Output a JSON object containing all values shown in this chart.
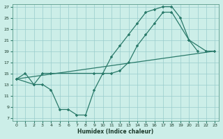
{
  "bg_color": "#cceee8",
  "grid_color": "#99cccc",
  "line_color": "#2a7a6a",
  "xlabel": "Humidex (Indice chaleur)",
  "xlim": [
    -0.5,
    23.5
  ],
  "ylim": [
    6.5,
    27.5
  ],
  "xticks": [
    0,
    1,
    2,
    3,
    4,
    5,
    6,
    7,
    8,
    9,
    10,
    11,
    12,
    13,
    14,
    15,
    16,
    17,
    18,
    19,
    20,
    21,
    22,
    23
  ],
  "yticks": [
    7,
    9,
    11,
    13,
    15,
    17,
    19,
    21,
    23,
    25,
    27
  ],
  "curve1_x": [
    0,
    1,
    2,
    3,
    4,
    5,
    6,
    7,
    8,
    9,
    10,
    11,
    12,
    13,
    14,
    15,
    16,
    17,
    18,
    19,
    20,
    21
  ],
  "curve1_y": [
    14,
    15,
    13,
    13,
    12,
    8.5,
    8.5,
    7.5,
    7.5,
    12,
    15,
    18,
    20,
    22,
    24,
    26,
    26.5,
    27,
    27,
    25,
    21,
    19
  ],
  "curve2_x": [
    0,
    2,
    3,
    4,
    9,
    10,
    11,
    12,
    13,
    14,
    15,
    16,
    17,
    18,
    20,
    22,
    23
  ],
  "curve2_y": [
    14,
    13,
    15,
    15,
    15,
    15,
    15,
    15.5,
    17,
    20,
    22,
    24,
    26,
    26,
    21,
    19,
    19
  ],
  "curve3_x": [
    0,
    23
  ],
  "curve3_y": [
    14,
    19
  ]
}
